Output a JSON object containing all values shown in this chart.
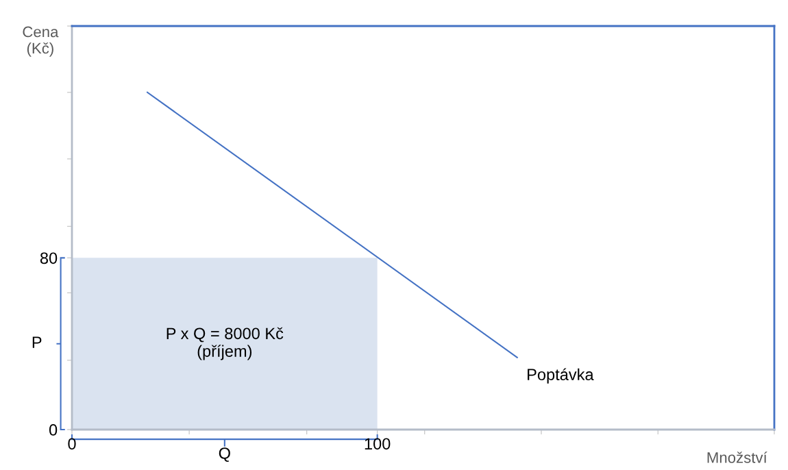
{
  "chart_data": {
    "type": "line",
    "xlabel": "Množství",
    "ylabel": "Cena\n(Kč)",
    "x": [
      24.7,
      145.8
    ],
    "series": [
      {
        "name": "Poptávka",
        "color": "#4472c4",
        "values": [
          157.1,
          33.6
        ]
      },
      {
        "type": "area",
        "color": "#dae3f0",
        "x": [
          0,
          100
        ],
        "values": [
          80,
          80
        ]
      }
    ],
    "xlim": [
      0,
      230
    ],
    "ylim": [
      0,
      188
    ],
    "xticks": [
      0,
      {
        "value": 38.4,
        "label": null
      },
      {
        "value": 76.9,
        "label": null
      },
      100,
      {
        "value": 115.5,
        "label": null
      },
      {
        "value": 153.7,
        "label": null
      },
      {
        "value": 191.9,
        "label": null
      },
      {
        "value": 230,
        "label": null
      }
    ],
    "yticks": [
      0,
      {
        "value": 32.3,
        "label": null
      },
      {
        "value": 63.7,
        "label": null
      },
      80,
      {
        "value": 94.7,
        "label": null
      },
      {
        "value": 126.1,
        "label": null
      },
      {
        "value": 157.1,
        "label": null
      },
      {
        "value": 188,
        "label": null
      }
    ],
    "annotations": [
      "P x Q = 8000 Kč\n(příjem)",
      "P",
      "Q"
    ],
    "grid": false,
    "legend": false
  }
}
